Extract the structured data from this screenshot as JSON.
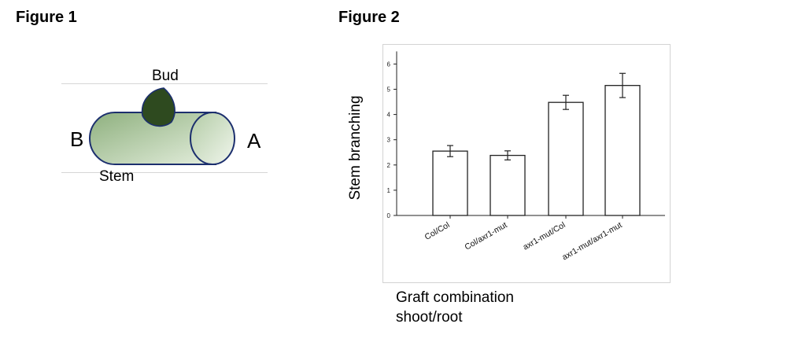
{
  "figure1": {
    "title": "Figure 1",
    "labels": {
      "bud": "Bud",
      "stem": "Stem",
      "end_b": "B",
      "end_a": "A"
    },
    "colors": {
      "stem_fill": "#c9dcc0",
      "stem_stroke": "#1c2f6e",
      "bud_fill": "#2e4a1f"
    }
  },
  "figure2": {
    "title": "Figure 2",
    "ylabel": "Stem branching",
    "xlabel_line1": "Graft combination",
    "xlabel_line2": "shoot/root"
  },
  "chart_data": {
    "type": "bar",
    "categories": [
      "Col/Col",
      "Col/axr1-mut",
      "axr1-mut/Col",
      "axr1-mut/axr1-mut"
    ],
    "values": [
      2.55,
      2.38,
      4.48,
      5.15
    ],
    "errors": [
      0.22,
      0.18,
      0.28,
      0.48
    ],
    "yticks": [
      "0",
      "1",
      "2",
      "3",
      "4",
      "5",
      "6"
    ],
    "ylim": [
      0,
      6.5
    ],
    "ylabel": "Stem branching",
    "xlabel": "Graft combination shoot/root",
    "grid": false
  }
}
